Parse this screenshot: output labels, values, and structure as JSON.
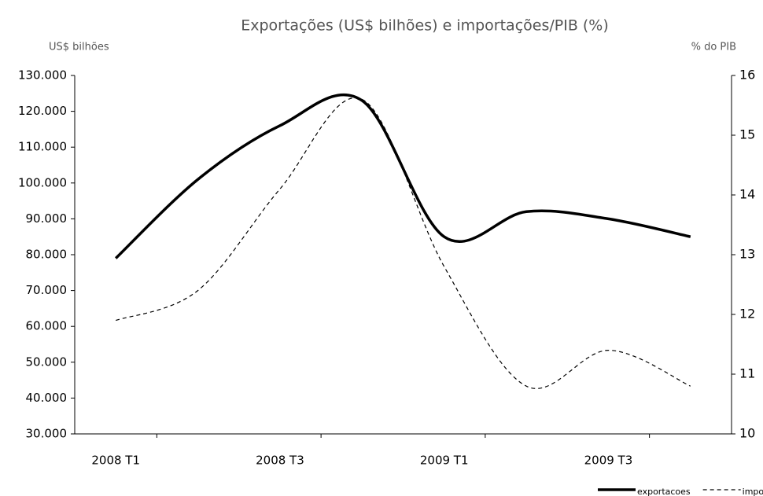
{
  "chart_data": {
    "type": "line",
    "title": "Exportações (US$ bilhões) e importações/PIB (%)",
    "y_label": "US$ bilhões",
    "y2_label": "% do PIB",
    "categories": [
      "2008 T1",
      null,
      "2008 T3",
      null,
      "2009 T1",
      null,
      "2009 T3",
      null
    ],
    "series": [
      {
        "name": "exportacoes",
        "color": "#000000",
        "line_style": "solid",
        "values": [
          79000,
          101000,
          116000,
          123000,
          85000,
          92000,
          90000,
          85000
        ]
      },
      {
        "name": "importações/PIB",
        "color": "#000000",
        "line_style": "dashed",
        "axis": "y2",
        "values": [
          11.9,
          12.4,
          14.1,
          15.6,
          12.8,
          10.8,
          11.4,
          10.8
        ]
      }
    ],
    "ylim": [
      30000,
      130000
    ],
    "yticks": [
      {
        "value": 30000,
        "label": "30.000"
      },
      {
        "value": 40000,
        "label": "40.000"
      },
      {
        "value": 50000,
        "label": "50.000"
      },
      {
        "value": 60000,
        "label": "60.000"
      },
      {
        "value": 70000,
        "label": "70.000"
      },
      {
        "value": 80000,
        "label": "80.000"
      },
      {
        "value": 90000,
        "label": "90.000"
      },
      {
        "value": 100000,
        "label": "100.000"
      },
      {
        "value": 110000,
        "label": "110.000"
      },
      {
        "value": 120000,
        "label": "120.000"
      },
      {
        "value": 130000,
        "label": "130.000"
      }
    ],
    "y2lim": [
      10,
      16
    ],
    "y2ticks": [
      10,
      11,
      12,
      13,
      14,
      15,
      16
    ],
    "smooth": true,
    "legend": "bottom-right"
  }
}
